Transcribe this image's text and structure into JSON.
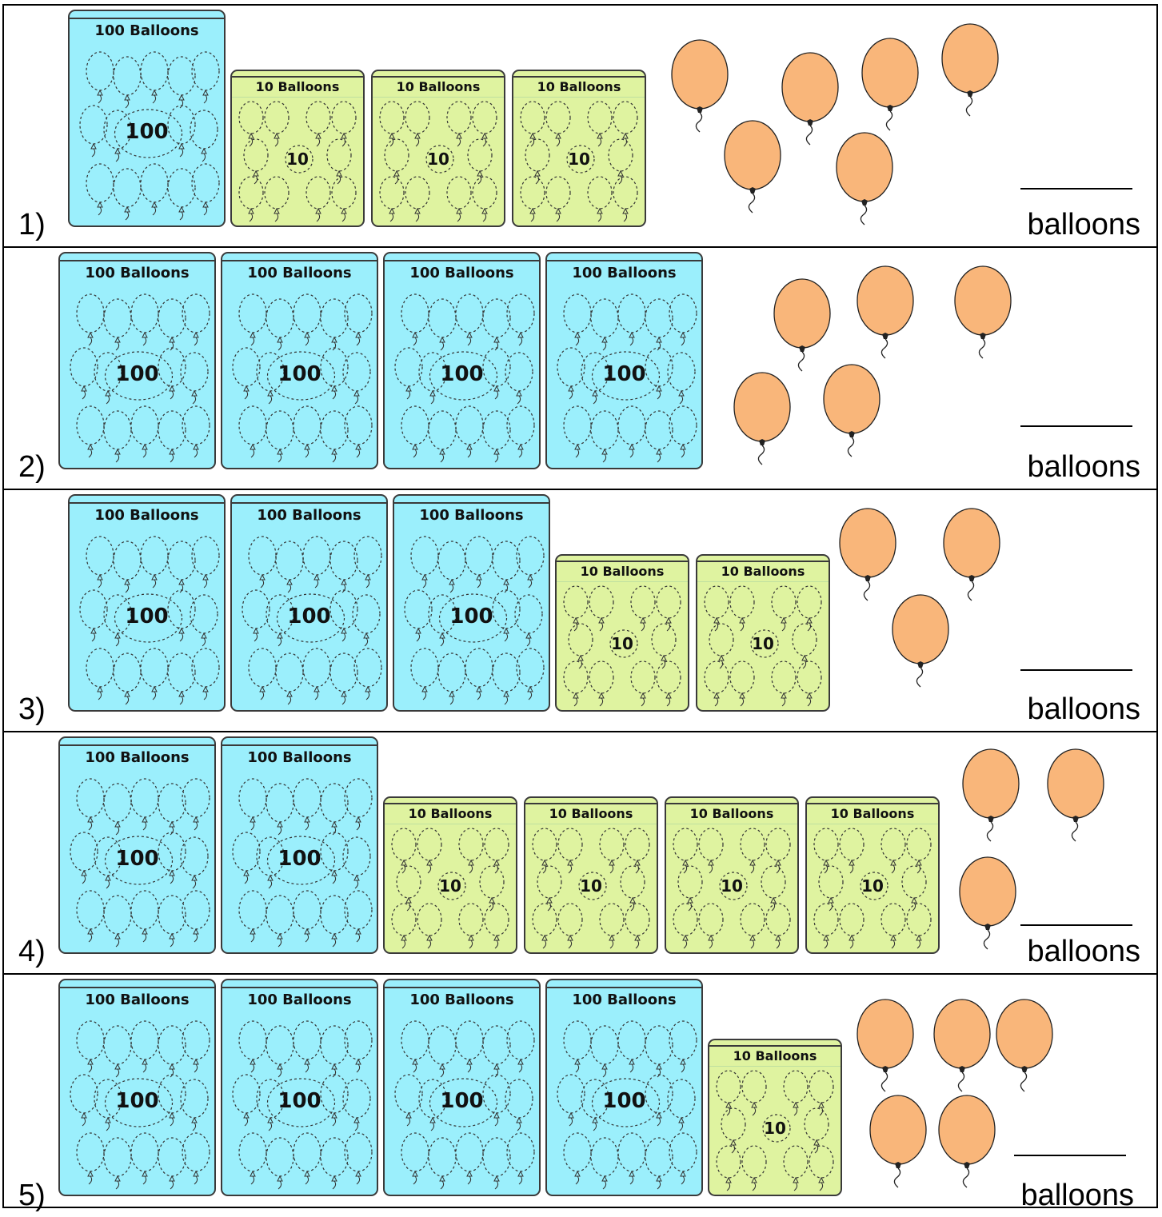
{
  "labels": {
    "hundred_pack": "100 Balloons",
    "ten_pack": "10 Balloons",
    "hundred_value": "100",
    "ten_value": "10",
    "unit_word": "balloons",
    "blank": "______"
  },
  "colors": {
    "hundred_pack_fill": "#9beffc",
    "ten_pack_fill": "#dff3a0",
    "balloon_fill": "#f9b67a",
    "outline": "#3a3a3a"
  },
  "problems": [
    {
      "number": "1)",
      "hundreds": 1,
      "tens": 3,
      "ones": 6
    },
    {
      "number": "2)",
      "hundreds": 4,
      "tens": 0,
      "ones": 5
    },
    {
      "number": "3)",
      "hundreds": 3,
      "tens": 2,
      "ones": 3
    },
    {
      "number": "4)",
      "hundreds": 2,
      "tens": 4,
      "ones": 3
    },
    {
      "number": "5)",
      "hundreds": 4,
      "tens": 1,
      "ones": 5
    }
  ]
}
